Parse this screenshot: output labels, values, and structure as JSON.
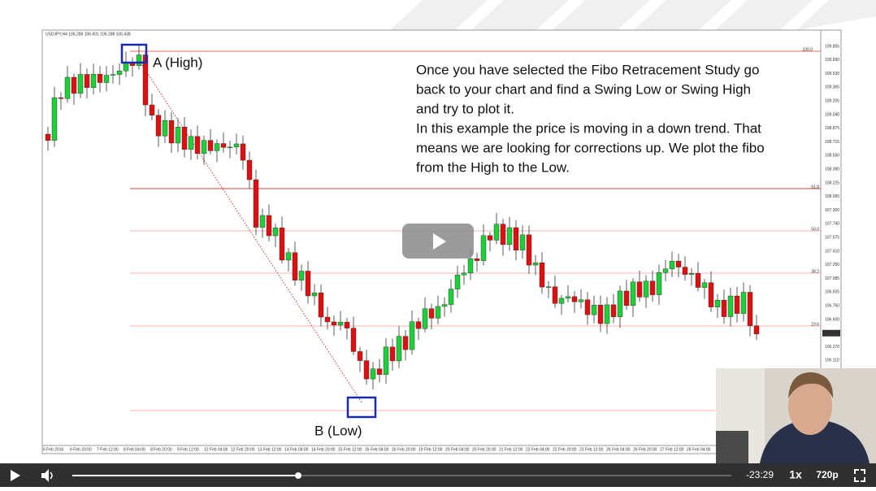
{
  "chart_header": "USDJPY,H4  106.288 106.601 106.288 106.438",
  "labels": {
    "a": "A (High)",
    "b": "B (Low)"
  },
  "annotation": [
    "Once you have selected the Fibo Retracement Study go",
    "back to your chart and find a Swing Low or Swing High",
    "and try to plot it.",
    "In this example the price is moving in a down trend. That",
    "means we are looking for corrections up. We plot the fibo",
    "from the High to the Low."
  ],
  "fib_levels": [
    "100.0",
    "61.8",
    "50.0",
    "38.2",
    "23.6"
  ],
  "price_axis": [
    "109.855",
    "109.690",
    "109.530",
    "109.365",
    "109.205",
    "109.040",
    "108.875",
    "108.715",
    "108.550",
    "108.390",
    "108.225",
    "108.065",
    "107.900",
    "107.740",
    "107.575",
    "107.410",
    "107.250",
    "107.085",
    "106.925",
    "106.760",
    "106.600",
    "106.438",
    "106.270",
    "106.110"
  ],
  "time_axis": [
    "6 Feb 2016",
    "6 Feb 20:00",
    "7 Feb 12:00",
    "8 Feb 04:00",
    "8 Feb 20:00",
    "9 Feb 12:00",
    "12 Feb 04:00",
    "12 Feb 20:00",
    "13 Feb 12:00",
    "14 Feb 04:00",
    "14 Feb 20:00",
    "15 Feb 12:00",
    "16 Feb 04:00",
    "16 Feb 20:00",
    "19 Feb 12:00",
    "20 Feb 04:00",
    "20 Feb 20:00",
    "21 Feb 12:00",
    "22 Feb 04:00",
    "22 Feb 20:00",
    "23 Feb 12:00",
    "26 Feb 04:00",
    "26 Feb 20:00",
    "27 Feb 12:00",
    "28 Feb 04:00"
  ],
  "player": {
    "time": "-23:29",
    "speed": "1x",
    "quality": "720p"
  }
}
